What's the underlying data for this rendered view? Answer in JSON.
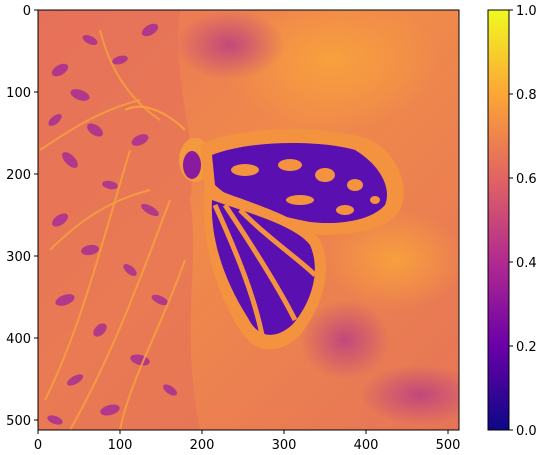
{
  "image": {
    "subject": "butterfly on foliage",
    "colormap": "plasma",
    "x_ticks": [
      "0",
      "100",
      "200",
      "300",
      "400",
      "500"
    ],
    "y_ticks": [
      "0",
      "100",
      "200",
      "300",
      "400",
      "500"
    ]
  },
  "colorbar": {
    "ticks": [
      "0.0",
      "0.2",
      "0.4",
      "0.6",
      "0.8",
      "1.0"
    ],
    "colors": [
      "#0d0887",
      "#6a00a8",
      "#b12a90",
      "#e16462",
      "#fca636",
      "#f0f921"
    ]
  }
}
